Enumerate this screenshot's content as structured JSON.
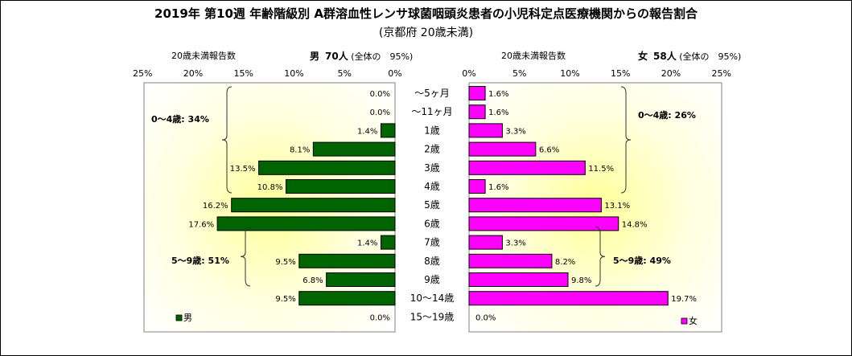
{
  "title": "2019年 第10週 年齢階級別 A群溶血性レンサ球菌咽頭炎患者の小児科定点医療機関からの報告割合",
  "subtitle": "(京都府 20歳未満)",
  "male_header": {
    "label": "20歳未満報告数",
    "name": "男",
    "count": "70人",
    "note": "(全体の　95%)"
  },
  "female_header": {
    "label": "20歳未満報告数",
    "name": "女",
    "count": "58人",
    "note": "(全体の　95%)"
  },
  "chart_data": {
    "type": "bar",
    "orientation": "horizontal-pyramid",
    "categories": [
      "～5ヶ月",
      "～11ヶ月",
      "1歳",
      "2歳",
      "3歳",
      "4歳",
      "5歳",
      "6歳",
      "7歳",
      "8歳",
      "9歳",
      "10～14歳",
      "15～19歳"
    ],
    "series": [
      {
        "name": "男",
        "color": "#006400",
        "values": [
          0.0,
          0.0,
          1.4,
          8.1,
          13.5,
          10.8,
          16.2,
          17.6,
          1.4,
          9.5,
          6.8,
          9.5,
          0.0
        ]
      },
      {
        "name": "女",
        "color": "#ff00ff",
        "values": [
          1.6,
          1.6,
          3.3,
          6.6,
          11.5,
          1.6,
          13.1,
          14.8,
          3.3,
          8.2,
          9.8,
          19.7,
          0.0
        ]
      }
    ],
    "xlim": [
      0,
      25
    ],
    "ticks": [
      "25%",
      "20%",
      "15%",
      "10%",
      "5%",
      "0%"
    ],
    "female_ticks": [
      "0%",
      "5%",
      "10%",
      "15%",
      "20%",
      "25%"
    ],
    "labels": {
      "male": [
        "0.0%",
        "0.0%",
        "1.4%",
        "8.1%",
        "13.5%",
        "10.8%",
        "16.2%",
        "17.6%",
        "1.4%",
        "9.5%",
        "6.8%",
        "9.5%",
        "0.0%"
      ],
      "female": [
        "1.6%",
        "1.6%",
        "3.3%",
        "6.6%",
        "11.5%",
        "1.6%",
        "13.1%",
        "14.8%",
        "3.3%",
        "8.2%",
        "9.8%",
        "19.7%",
        "0.0%"
      ]
    },
    "annotations": {
      "male_0_4": "0～4歳: 34%",
      "male_5_9": "5～9歳: 51%",
      "female_0_4": "0～4歳: 26%",
      "female_5_9": "5～9歳: 49%"
    },
    "legend": {
      "male": "男",
      "female": "女",
      "placement": "bottom"
    }
  }
}
